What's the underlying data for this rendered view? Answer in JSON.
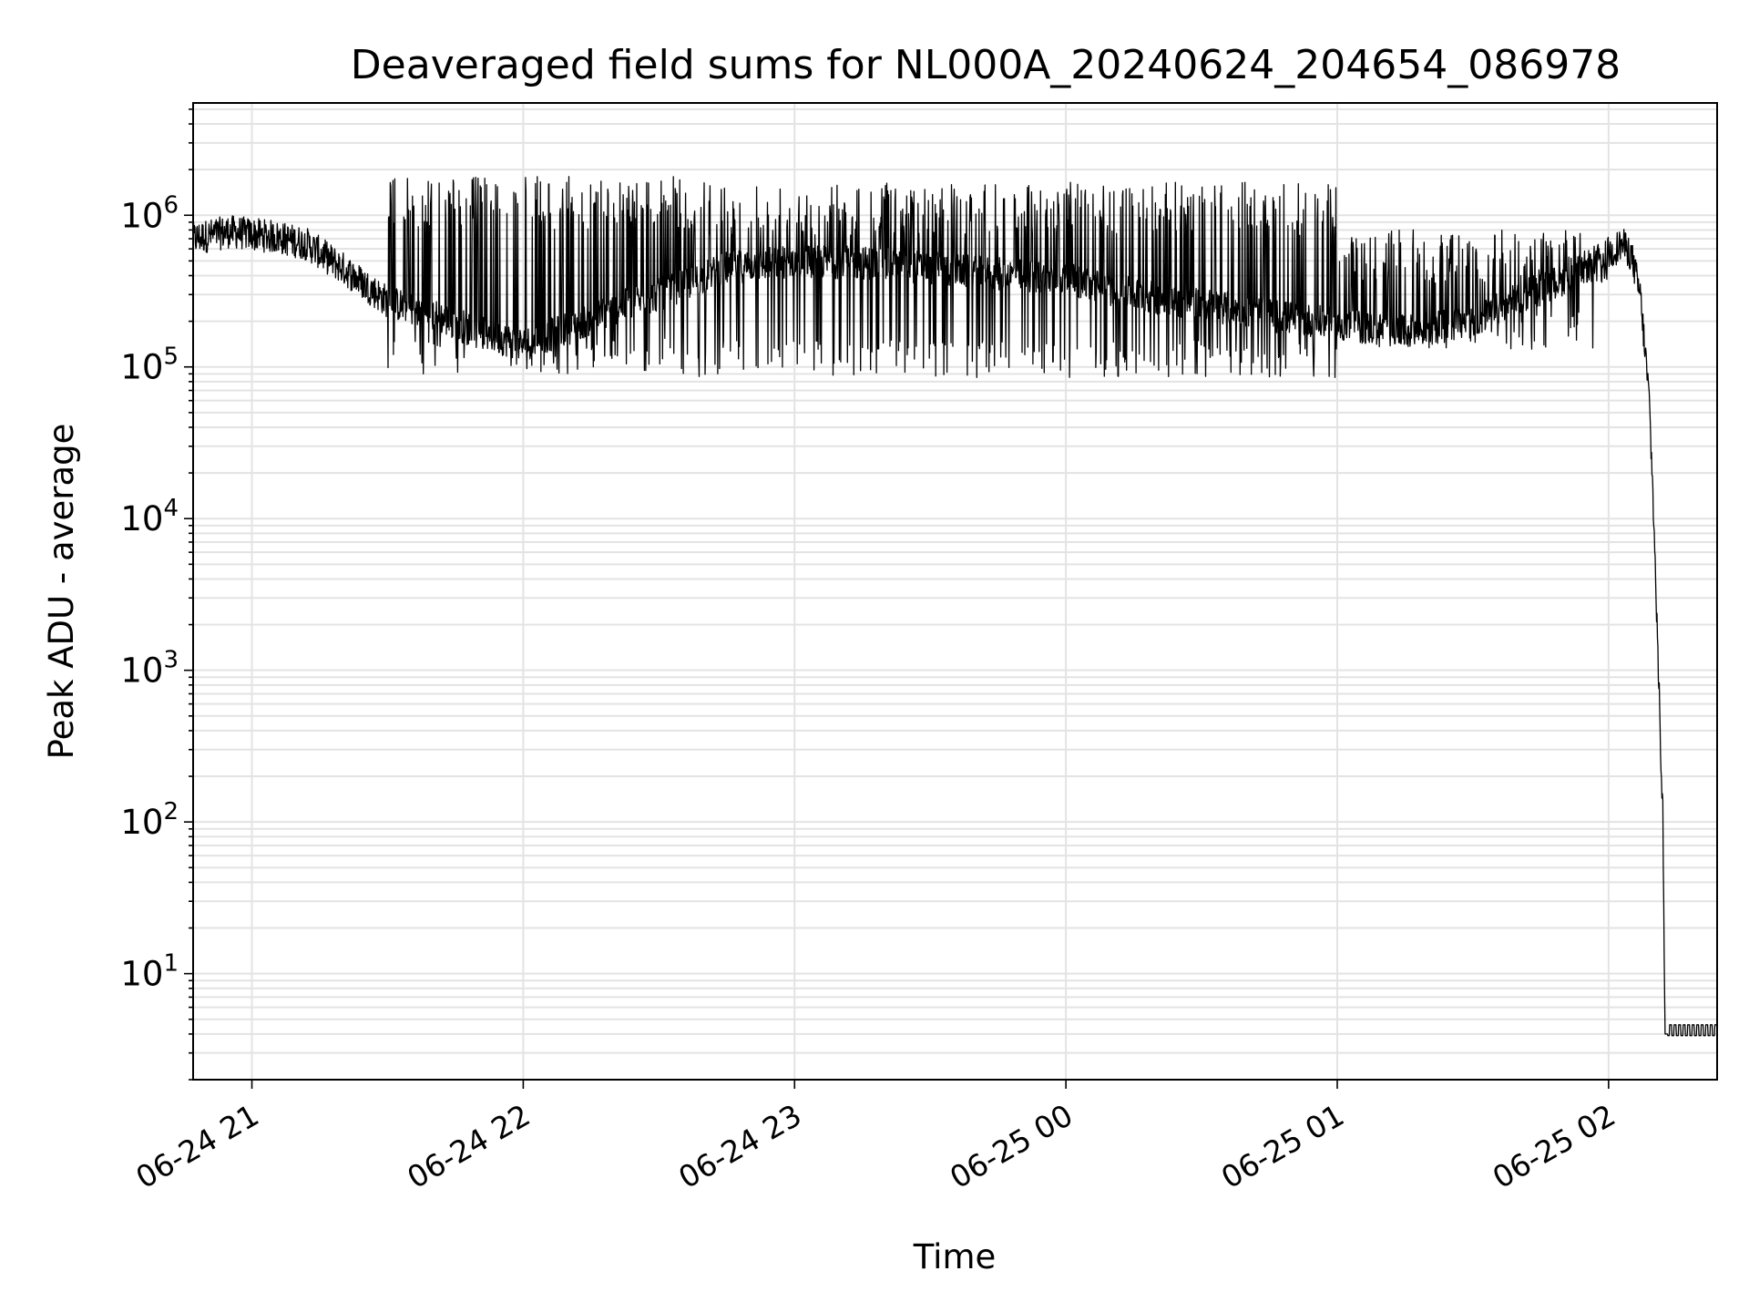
{
  "chart_data": {
    "type": "line",
    "title": "Deaveraged field sums for NL000A_20240624_204654_086978",
    "xlabel": "Time",
    "ylabel": "Peak ADU - average",
    "yscale": "log",
    "ylim": [
      2,
      5500000
    ],
    "xlim": [
      "2024-06-24 20:47",
      "2024-06-25 02:24"
    ],
    "grid": true,
    "x_ticks": [
      {
        "t": "2024-06-24 21:00",
        "label": "06-24 21"
      },
      {
        "t": "2024-06-24 22:00",
        "label": "06-24 22"
      },
      {
        "t": "2024-06-24 23:00",
        "label": "06-24 23"
      },
      {
        "t": "2024-06-25 00:00",
        "label": "06-25 00"
      },
      {
        "t": "2024-06-25 01:00",
        "label": "06-25 01"
      },
      {
        "t": "2024-06-25 02:00",
        "label": "06-25 02"
      }
    ],
    "y_ticks": [
      {
        "value": 10,
        "base": "10",
        "exp": "1"
      },
      {
        "value": 100,
        "base": "10",
        "exp": "2"
      },
      {
        "value": 1000,
        "base": "10",
        "exp": "3"
      },
      {
        "value": 10000,
        "base": "10",
        "exp": "4"
      },
      {
        "value": 100000,
        "base": "10",
        "exp": "5"
      },
      {
        "value": 1000000,
        "base": "10",
        "exp": "6"
      }
    ],
    "series": [
      {
        "color": "#000000",
        "points": [
          [
            "2024-06-24 20:47",
            700000
          ],
          [
            "2024-06-24 20:55",
            780000
          ],
          [
            "2024-06-24 21:05",
            720000
          ],
          [
            "2024-06-24 21:12",
            650000
          ],
          [
            "2024-06-24 21:20",
            450000
          ],
          [
            "2024-06-24 21:30",
            270000
          ],
          [
            "2024-06-24 21:40",
            220000
          ],
          [
            "2024-06-24 21:50",
            170000
          ],
          [
            "2024-06-24 22:00",
            140000
          ],
          [
            "2024-06-24 22:10",
            180000
          ],
          [
            "2024-06-24 22:20",
            240000
          ],
          [
            "2024-06-24 22:30",
            300000
          ],
          [
            "2024-06-24 22:45",
            450000
          ],
          [
            "2024-06-24 23:00",
            500000
          ],
          [
            "2024-06-24 23:20",
            480000
          ],
          [
            "2024-06-24 23:40",
            420000
          ],
          [
            "2024-06-25 00:00",
            380000
          ],
          [
            "2024-06-25 00:15",
            300000
          ],
          [
            "2024-06-25 00:30",
            260000
          ],
          [
            "2024-06-25 00:45",
            220000
          ],
          [
            "2024-06-25 01:00",
            190000
          ],
          [
            "2024-06-25 01:15",
            170000
          ],
          [
            "2024-06-25 01:30",
            200000
          ],
          [
            "2024-06-25 01:40",
            280000
          ],
          [
            "2024-06-25 01:50",
            380000
          ],
          [
            "2024-06-25 02:00",
            550000
          ],
          [
            "2024-06-25 02:03",
            650000
          ],
          [
            "2024-06-25 02:05",
            550000
          ],
          [
            "2024-06-25 02:07",
            300000
          ],
          [
            "2024-06-25 02:09",
            60000
          ],
          [
            "2024-06-25 02:10",
            10000
          ],
          [
            "2024-06-25 02:11",
            1000
          ],
          [
            "2024-06-25 02:12",
            110
          ],
          [
            "2024-06-25 02:12:30",
            4
          ],
          [
            "2024-06-25 02:24",
            4
          ]
        ],
        "spikes": [
          {
            "from": "2024-06-24 21:30",
            "to": "2024-06-24 22:35",
            "high": 1800000,
            "low": 90000
          },
          {
            "from": "2024-06-24 22:35",
            "to": "2024-06-25 01:00",
            "high": 1650000,
            "low": 85000
          },
          {
            "from": "2024-06-25 01:00",
            "to": "2024-06-25 02:00",
            "high": 800000,
            "low": 130000
          }
        ]
      }
    ]
  }
}
